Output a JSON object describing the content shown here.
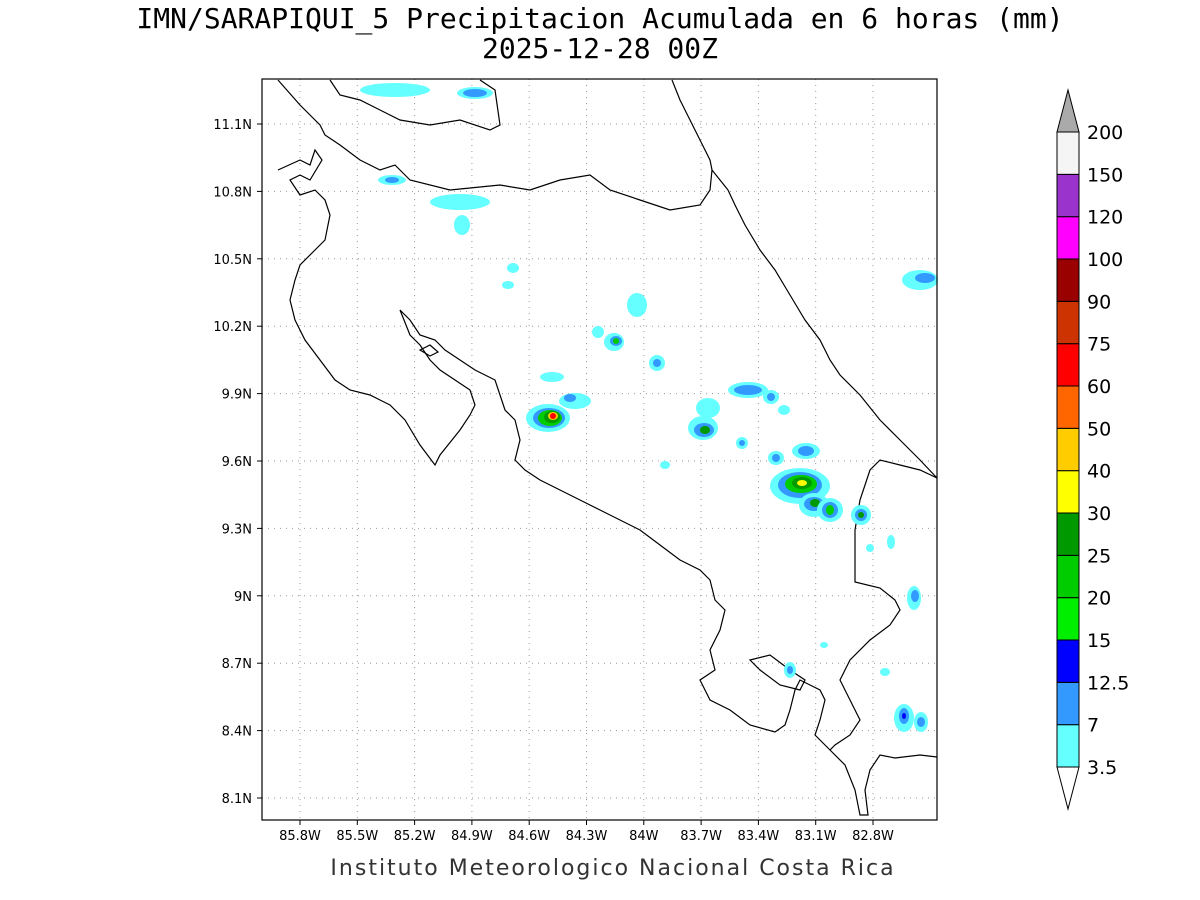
{
  "title_line1": "IMN/SARAPIQUI_5 Precipitacion Acumulada en 6 horas (mm)",
  "title_line2": "2025-12-28 00Z",
  "footer": "Instituto Meteorologico Nacional Costa Rica",
  "map": {
    "lon_range": [
      -86.04,
      -82.54
    ],
    "lat_range": [
      8.02,
      11.32
    ],
    "lon_ticks": [
      "85.8W",
      "85.5W",
      "85.2W",
      "84.9W",
      "84.6W",
      "84.3W",
      "84W",
      "83.7W",
      "83.4W",
      "83.1W",
      "82.8W"
    ],
    "lat_ticks": [
      "11.1N",
      "10.8N",
      "10.5N",
      "10.2N",
      "9.9N",
      "9.6N",
      "9.3N",
      "9N",
      "8.7N",
      "8.4N",
      "8.1N"
    ],
    "grid": true
  },
  "colorbar": {
    "labels": [
      "3.5",
      "7",
      "12.5",
      "15",
      "20",
      "25",
      "30",
      "40",
      "50",
      "60",
      "75",
      "90",
      "100",
      "120",
      "150",
      "200"
    ],
    "colors": [
      "#66ffff",
      "#3399ff",
      "#0000ff",
      "#00ee00",
      "#00cc00",
      "#009900",
      "#ffff00",
      "#ffcc00",
      "#ff6600",
      "#ff0000",
      "#cc3300",
      "#990000",
      "#ff00ff",
      "#9933cc",
      "#f5f5f5",
      "#aaaaaa"
    ]
  }
}
